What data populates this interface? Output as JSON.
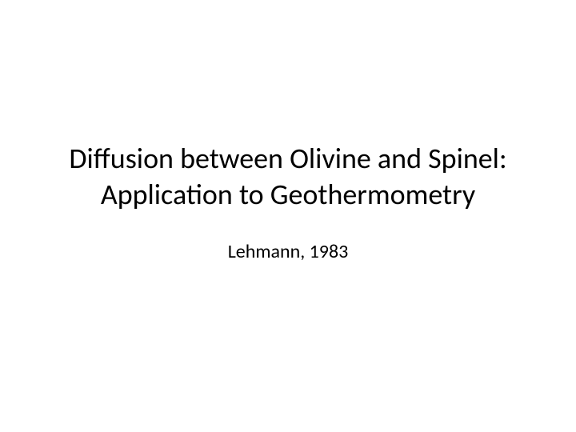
{
  "slide": {
    "title_line1": "Diffusion between Olivine and Spinel:",
    "title_line2": "Application to Geothermometry",
    "author": "Lehmann, 1983",
    "background_color": "#ffffff",
    "title_color": "#000000",
    "author_color": "#000000",
    "title_fontsize": 36,
    "author_fontsize": 24,
    "font_family": "Calibri"
  }
}
